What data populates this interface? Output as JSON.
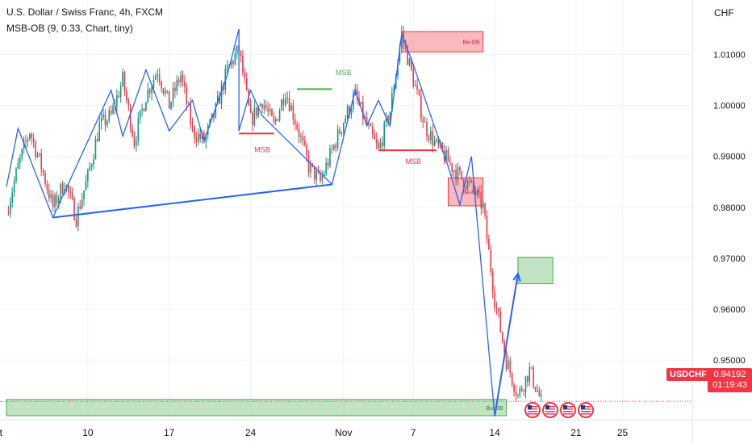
{
  "header": {
    "title": "U.S. Dollar / Swiss Franc, 4h, FXCM",
    "indicator": "MSB-OB (9, 0.33, Chart, tiny)",
    "currency": "CHF"
  },
  "price_tag": {
    "symbol": "USDCHF",
    "price": "0.94192",
    "countdown": "01:19:43"
  },
  "colors": {
    "up": "#089981",
    "down": "#f23645",
    "zigzag": "#2962ff",
    "grid": "#f0f3fa",
    "axis_text": "#131722",
    "bear_box_fill": "rgba(242,54,69,0.35)",
    "bear_box_stroke": "#f23645",
    "bull_box_fill": "rgba(76,175,80,0.35)",
    "bull_box_stroke": "#4caf50"
  },
  "chart_data": {
    "type": "candlestick",
    "symbol": "USDCHF",
    "timeframe": "4h",
    "ylim": [
      0.9383,
      1.0207
    ],
    "xlim": [
      "2023-10-03",
      "2023-12-01"
    ],
    "y_ticks": [
      "1.01000",
      "1.00000",
      "0.99000",
      "0.98000",
      "0.97000",
      "0.96000",
      "0.95000"
    ],
    "x_ticks": [
      {
        "label": "Oct",
        "date": "2023-10-02"
      },
      {
        "label": "10",
        "date": "2023-10-10"
      },
      {
        "label": "17",
        "date": "2023-10-17"
      },
      {
        "label": "24",
        "date": "2023-10-24"
      },
      {
        "label": "Nov",
        "date": "2023-11-01"
      },
      {
        "label": "7",
        "date": "2023-11-07"
      },
      {
        "label": "14",
        "date": "2023-11-14"
      },
      {
        "label": "21",
        "date": "2023-11-21"
      },
      {
        "label": "25",
        "date": "2023-11-25"
      }
    ],
    "last_price": 0.94192,
    "price_path": [
      [
        "2023-10-03",
        0.979
      ],
      [
        "2023-10-04",
        0.988
      ],
      [
        "2023-10-05",
        0.995
      ],
      [
        "2023-10-06",
        0.988
      ],
      [
        "2023-10-07",
        0.98
      ],
      [
        "2023-10-08",
        0.985
      ],
      [
        "2023-10-09",
        0.978
      ],
      [
        "2023-10-10",
        0.986
      ],
      [
        "2023-10-11",
        0.996
      ],
      [
        "2023-10-12",
        0.998
      ],
      [
        "2023-10-13",
        1.005
      ],
      [
        "2023-10-14",
        0.993
      ],
      [
        "2023-10-15",
        1.002
      ],
      [
        "2023-10-16",
        1.007
      ],
      [
        "2023-10-17",
        1.0
      ],
      [
        "2023-10-18",
        1.006
      ],
      [
        "2023-10-19",
        0.995
      ],
      [
        "2023-10-20",
        0.993
      ],
      [
        "2023-10-21",
        0.999
      ],
      [
        "2023-10-22",
        1.007
      ],
      [
        "2023-10-23",
        1.011
      ],
      [
        "2023-10-24",
        0.997
      ],
      [
        "2023-10-25",
        1.001
      ],
      [
        "2023-10-26",
        0.996
      ],
      [
        "2023-10-27",
        1.003
      ],
      [
        "2023-10-28",
        0.996
      ],
      [
        "2023-10-29",
        0.988
      ],
      [
        "2023-10-30",
        0.985
      ],
      [
        "2023-10-31",
        0.991
      ],
      [
        "2023-11-01",
        0.997
      ],
      [
        "2023-11-02",
        1.002
      ],
      [
        "2023-11-03",
        0.996
      ],
      [
        "2023-11-04",
        0.991
      ],
      [
        "2023-11-05",
        0.999
      ],
      [
        "2023-11-06",
        1.014
      ],
      [
        "2023-11-07",
        1.005
      ],
      [
        "2023-11-08",
        0.996
      ],
      [
        "2023-11-09",
        0.992
      ],
      [
        "2023-11-10",
        0.989
      ],
      [
        "2023-11-11",
        0.986
      ],
      [
        "2023-11-12",
        0.984
      ],
      [
        "2023-11-13",
        0.98
      ],
      [
        "2023-11-14",
        0.962
      ],
      [
        "2023-11-15",
        0.95
      ],
      [
        "2023-11-16",
        0.943
      ],
      [
        "2023-11-17",
        0.948
      ],
      [
        "2023-11-18",
        0.9419
      ]
    ],
    "zigzag": [
      [
        "2023-10-03",
        0.984
      ],
      [
        "2023-10-04",
        0.9955
      ],
      [
        "2023-10-07",
        0.978
      ],
      [
        "2023-10-12",
        1.003
      ],
      [
        "2023-10-13",
        0.994
      ],
      [
        "2023-10-15",
        1.007
      ],
      [
        "2023-10-17",
        0.995
      ],
      [
        "2023-10-19",
        1.001
      ],
      [
        "2023-10-20",
        0.993
      ],
      [
        "2023-10-22",
        1.006
      ],
      [
        "2023-10-23",
        1.015
      ],
      [
        "2023-10-23",
        0.995
      ],
      [
        "2023-10-24",
        1.003
      ],
      [
        "2023-10-25",
        0.998
      ],
      [
        "2023-10-31",
        0.9845
      ],
      [
        "2023-11-02",
        1.003
      ],
      [
        "2023-11-03",
        0.996
      ],
      [
        "2023-11-04",
        1.001
      ],
      [
        "2023-11-05",
        0.996
      ],
      [
        "2023-11-06",
        1.014
      ],
      [
        "2023-11-07",
        1.008
      ],
      [
        "2023-11-10",
        0.988
      ],
      [
        "2023-11-11",
        0.9805
      ],
      [
        "2023-11-12",
        0.99
      ],
      [
        "2023-11-14",
        0.939
      ],
      [
        "2023-11-16",
        0.967
      ]
    ],
    "arrow": {
      "from": [
        "2023-11-14",
        0.939
      ],
      "to": [
        "2023-11-16",
        0.967
      ]
    },
    "levels": [
      {
        "label": "",
        "x1": "2023-10-23",
        "x2": "2023-10-26",
        "y": 0.9945,
        "color": "#f23645"
      },
      {
        "label": "MSB",
        "x1": "2023-10-28",
        "x2": "2023-10-31",
        "y": 1.0032,
        "color": "#4caf50"
      },
      {
        "label": "",
        "x1": "2023-11-04",
        "x2": "2023-11-09",
        "y": 0.9912,
        "color": "#f23645"
      }
    ],
    "labels": [
      {
        "text": "MSB",
        "x": "2023-10-25",
        "y": 0.9908,
        "color": "#f23645"
      },
      {
        "text": "MSB",
        "x": "2023-11-01",
        "y": 1.006,
        "color": "#4caf50"
      },
      {
        "text": "MSB",
        "x": "2023-11-07",
        "y": 0.9885,
        "color": "#f23645"
      }
    ],
    "zones": [
      {
        "label": "Be-OB",
        "kind": "bear",
        "x1": "2023-11-06",
        "x2": "2023-11-13",
        "y1": 1.0105,
        "y2": 1.0145
      },
      {
        "label": "Be-MB",
        "kind": "bear",
        "x1": "2023-11-10",
        "x2": "2023-11-13",
        "y1": 0.9803,
        "y2": 0.9858
      },
      {
        "label": "",
        "kind": "bull",
        "x1": "2023-11-16",
        "x2": "2023-11-19",
        "y1": 0.965,
        "y2": 0.9702
      },
      {
        "label": "Bu-OB",
        "kind": "bull",
        "x1": "2023-10-03",
        "x2": "2023-11-15",
        "y1": 0.9391,
        "y2": 0.9423
      }
    ],
    "event_icons": [
      "us-flag-icon",
      "us-flag-icon",
      "us-flag-icon",
      "us-flag-icon"
    ],
    "grid": true,
    "legend": "none"
  }
}
